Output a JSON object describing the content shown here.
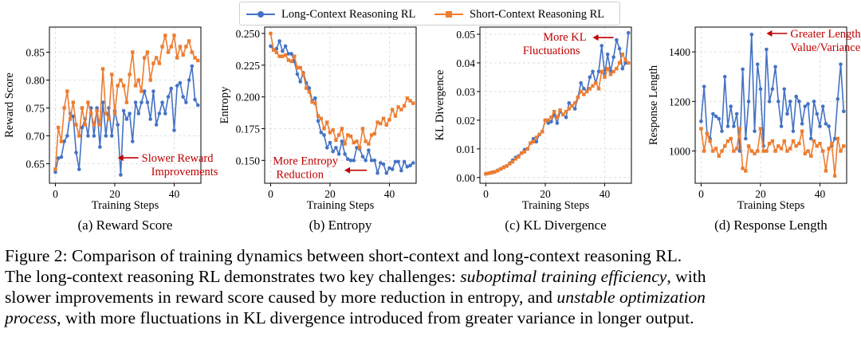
{
  "legend": {
    "long_label": "Long-Context Reasoning RL",
    "short_label": "Short-Context Reasoning RL"
  },
  "colors": {
    "long": "#4472c4",
    "short": "#ed7d31",
    "annotation": "#c00000"
  },
  "chart_data": [
    {
      "id": "reward",
      "type": "line",
      "caption": "(a) Reward Score",
      "xlabel": "Training Steps",
      "ylabel": "Reward Score",
      "xlim": [
        -2,
        49
      ],
      "ylim": [
        0.615,
        0.895
      ],
      "xticks": [
        0,
        20,
        40
      ],
      "yticks": [
        0.65,
        0.7,
        0.75,
        0.8,
        0.85
      ],
      "ytick_labels": [
        "0.65",
        "0.70",
        "0.75",
        "0.80",
        "0.85"
      ],
      "annotation": {
        "lines": [
          "Slower Reward",
          "Improvements"
        ],
        "arrow": "to-left",
        "x": 21,
        "y": 0.652
      },
      "series": [
        {
          "name": "Long-Context Reasoning RL",
          "key": "long",
          "values": [
            0.635,
            0.66,
            0.662,
            0.69,
            0.7,
            0.74,
            0.735,
            0.67,
            0.64,
            0.715,
            0.73,
            0.7,
            0.75,
            0.7,
            0.75,
            0.68,
            0.76,
            0.7,
            0.75,
            0.7,
            0.745,
            0.72,
            0.63,
            0.745,
            0.73,
            0.74,
            0.69,
            0.76,
            0.74,
            0.76,
            0.78,
            0.76,
            0.73,
            0.78,
            0.72,
            0.74,
            0.76,
            0.74,
            0.77,
            0.785,
            0.71,
            0.79,
            0.795,
            0.77,
            0.76,
            0.8,
            0.825,
            0.765,
            0.755
          ]
        },
        {
          "name": "Short-Context Reasoning RL",
          "key": "short",
          "values": [
            0.64,
            0.715,
            0.69,
            0.75,
            0.78,
            0.73,
            0.76,
            0.72,
            0.7,
            0.75,
            0.72,
            0.76,
            0.74,
            0.72,
            0.745,
            0.72,
            0.82,
            0.74,
            0.73,
            0.81,
            0.74,
            0.79,
            0.8,
            0.79,
            0.76,
            0.81,
            0.85,
            0.79,
            0.8,
            0.78,
            0.84,
            0.85,
            0.8,
            0.83,
            0.84,
            0.83,
            0.86,
            0.88,
            0.85,
            0.86,
            0.88,
            0.84,
            0.86,
            0.845,
            0.86,
            0.87,
            0.85,
            0.84,
            0.835
          ]
        }
      ]
    },
    {
      "id": "entropy",
      "type": "line",
      "caption": "(b) Entropy",
      "xlabel": "Training Steps",
      "ylabel": "Entropy",
      "xlim": [
        -2,
        49
      ],
      "ylim": [
        0.132,
        0.255
      ],
      "xticks": [
        0,
        20,
        40
      ],
      "yticks": [
        0.15,
        0.175,
        0.2,
        0.225,
        0.25
      ],
      "ytick_labels": [
        "0.150",
        "0.175",
        "0.200",
        "0.225",
        "0.250"
      ],
      "annotation": {
        "lines": [
          "More Entropy",
          "Reduction"
        ],
        "arrow": "to-left",
        "x": 27,
        "y": 0.146
      },
      "series": [
        {
          "name": "Long-Context Reasoning RL",
          "key": "long",
          "values": [
            0.24,
            0.237,
            0.238,
            0.244,
            0.236,
            0.24,
            0.234,
            0.234,
            0.228,
            0.218,
            0.212,
            0.219,
            0.211,
            0.207,
            0.197,
            0.199,
            0.181,
            0.172,
            0.17,
            0.16,
            0.164,
            0.157,
            0.16,
            0.155,
            0.165,
            0.155,
            0.151,
            0.15,
            0.15,
            0.16,
            0.159,
            0.153,
            0.15,
            0.158,
            0.15,
            0.15,
            0.14,
            0.148,
            0.147,
            0.14,
            0.144,
            0.143,
            0.149,
            0.149,
            0.142,
            0.149,
            0.145,
            0.146,
            0.148
          ]
        },
        {
          "name": "Short-Context Reasoning RL",
          "key": "short",
          "values": [
            0.25,
            0.237,
            0.235,
            0.232,
            0.232,
            0.233,
            0.229,
            0.228,
            0.232,
            0.223,
            0.223,
            0.218,
            0.207,
            0.204,
            0.196,
            0.195,
            0.185,
            0.183,
            0.175,
            0.18,
            0.172,
            0.174,
            0.166,
            0.17,
            0.175,
            0.163,
            0.17,
            0.169,
            0.164,
            0.165,
            0.16,
            0.175,
            0.165,
            0.163,
            0.17,
            0.171,
            0.18,
            0.179,
            0.183,
            0.178,
            0.182,
            0.19,
            0.185,
            0.192,
            0.19,
            0.193,
            0.199,
            0.197,
            0.195
          ]
        }
      ]
    },
    {
      "id": "kl",
      "type": "line",
      "caption": "(c) KL Divergence",
      "xlabel": "Training Steps",
      "ylabel": "KL Divergence",
      "xlim": [
        -2,
        49
      ],
      "ylim": [
        -0.002,
        0.0525
      ],
      "xticks": [
        0,
        20,
        40
      ],
      "yticks": [
        0.0,
        0.01,
        0.02,
        0.03,
        0.04,
        0.05
      ],
      "ytick_labels": [
        "0.00",
        "0.01",
        "0.02",
        "0.03",
        "0.04",
        "0.05"
      ],
      "annotation": {
        "lines": [
          "More KL",
          "Fluctuations"
        ],
        "arrow": "to-left",
        "x": 36,
        "y": 0.0455
      },
      "series": [
        {
          "name": "Long-Context Reasoning RL",
          "key": "long",
          "values": [
            0.0013,
            0.0015,
            0.0018,
            0.002,
            0.0025,
            0.003,
            0.0036,
            0.004,
            0.005,
            0.006,
            0.007,
            0.0075,
            0.0085,
            0.0097,
            0.01,
            0.012,
            0.0135,
            0.0125,
            0.015,
            0.016,
            0.02,
            0.019,
            0.0195,
            0.022,
            0.019,
            0.023,
            0.022,
            0.021,
            0.026,
            0.025,
            0.024,
            0.028,
            0.033,
            0.031,
            0.03,
            0.035,
            0.037,
            0.033,
            0.037,
            0.046,
            0.036,
            0.043,
            0.037,
            0.042,
            0.048,
            0.045,
            0.038,
            0.04,
            0.0505
          ]
        },
        {
          "name": "Short-Context Reasoning RL",
          "key": "short",
          "values": [
            0.0013,
            0.0015,
            0.0017,
            0.002,
            0.0024,
            0.003,
            0.0035,
            0.004,
            0.0048,
            0.0055,
            0.0065,
            0.0072,
            0.0085,
            0.009,
            0.01,
            0.012,
            0.0125,
            0.014,
            0.015,
            0.016,
            0.02,
            0.02,
            0.021,
            0.023,
            0.021,
            0.0235,
            0.022,
            0.023,
            0.024,
            0.025,
            0.026,
            0.028,
            0.03,
            0.029,
            0.03,
            0.031,
            0.032,
            0.033,
            0.031,
            0.037,
            0.035,
            0.038,
            0.036,
            0.037,
            0.038,
            0.04,
            0.043,
            0.041,
            0.04
          ]
        }
      ]
    },
    {
      "id": "length",
      "type": "line",
      "caption": "(d) Response Length",
      "xlabel": "Training Steps",
      "ylabel": "Response Length",
      "xlim": [
        -2,
        49
      ],
      "ylim": [
        870,
        1500
      ],
      "xticks": [
        0,
        20,
        40
      ],
      "yticks": [
        1000,
        1200,
        1400
      ],
      "ytick_labels": [
        "1000",
        "1200",
        "1400"
      ],
      "annotation": {
        "lines": [
          "Greater Length",
          "Value/Variance"
        ],
        "arrow": "to-left",
        "x": 22,
        "y": 1455
      },
      "series": [
        {
          "name": "Long-Context Reasoning RL",
          "key": "long",
          "values": [
            1120,
            1260,
            1070,
            1050,
            1150,
            1140,
            1130,
            1080,
            1300,
            1100,
            1180,
            1100,
            1150,
            1000,
            1330,
            1050,
            1200,
            1470,
            1080,
            1350,
            1250,
            1020,
            1410,
            1200,
            1250,
            1340,
            1200,
            1100,
            1250,
            1150,
            1200,
            1080,
            1220,
            1200,
            1110,
            1180,
            1190,
            1050,
            1200,
            1150,
            1100,
            1180,
            1110,
            1100,
            1020,
            1050,
            1210,
            1350,
            1160
          ]
        },
        {
          "name": "Short-Context Reasoning RL",
          "key": "short",
          "values": [
            1090,
            1000,
            1070,
            1040,
            1000,
            1010,
            980,
            1000,
            1020,
            1040,
            1050,
            1000,
            1010,
            1090,
            930,
            920,
            1020,
            1000,
            990,
            1000,
            1090,
            1000,
            1000,
            1030,
            1040,
            1000,
            1020,
            1010,
            1040,
            1000,
            1010,
            1040,
            1020,
            1030,
            1080,
            990,
            1000,
            980,
            1040,
            1020,
            1030,
            1000,
            920,
            1010,
            1030,
            900,
            1050,
            1000,
            1020
          ]
        }
      ]
    }
  ],
  "figure_caption": {
    "line1": "Figure 2: Comparison of training dynamics between short-context and long-context reasoning RL.",
    "line2_a": "The long-context reasoning RL demonstrates two key challenges: ",
    "line2_em": "suboptimal training efficiency",
    "line2_b": ", with",
    "line3_a": "slower improvements in reward score caused by more reduction in entropy, and ",
    "line3_em": "unstable optimization",
    "line4_em": "process",
    "line4_b": ", with more fluctuations in KL divergence introduced from greater variance in longer output."
  }
}
